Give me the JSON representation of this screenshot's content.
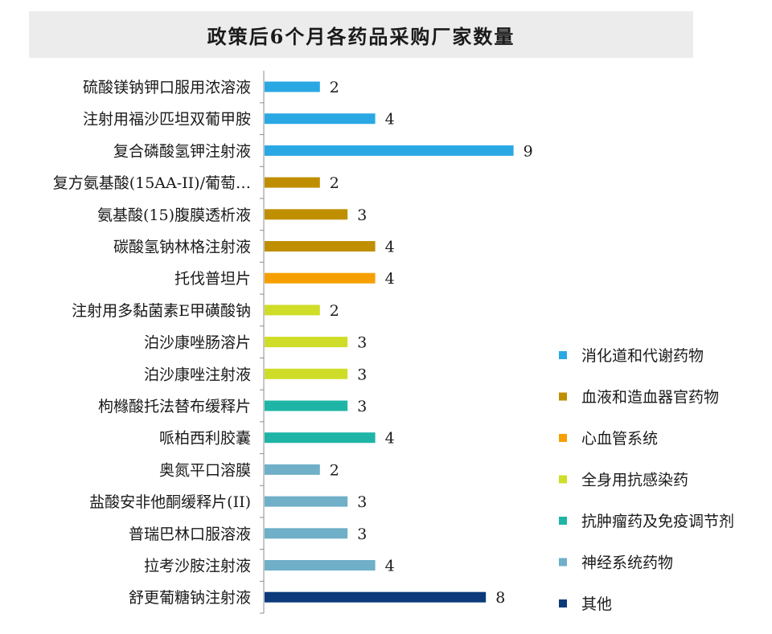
{
  "chart_data": {
    "type": "bar",
    "orientation": "horizontal",
    "title": "政策后6个月各药品采购厂家数量",
    "categories": [
      "硫酸镁钠钾口服用浓溶液",
      "注射用福沙匹坦双葡甲胺",
      "复合磷酸氢钾注射液",
      "复方氨基酸(15AA-II)/葡萄…",
      "氨基酸(15)腹膜透析液",
      "碳酸氢钠林格注射液",
      "托伐普坦片",
      "注射用多黏菌素E甲磺酸钠",
      "泊沙康唑肠溶片",
      "泊沙康唑注射液",
      "枸橼酸托法替布缓释片",
      "哌柏西利胶囊",
      "奥氮平口溶膜",
      "盐酸安非他酮缓释片(II)",
      "普瑞巴林口服溶液",
      "拉考沙胺注射液",
      "舒更葡糖钠注射液"
    ],
    "values": [
      2,
      4,
      9,
      2,
      3,
      4,
      4,
      2,
      3,
      3,
      3,
      4,
      2,
      3,
      3,
      4,
      8
    ],
    "groups": [
      0,
      0,
      0,
      1,
      1,
      1,
      2,
      3,
      3,
      3,
      4,
      4,
      5,
      5,
      5,
      5,
      6
    ],
    "legend": {
      "placement": "right",
      "entries": [
        {
          "name": "消化道和代谢药物",
          "color": "#2aa8e4"
        },
        {
          "name": "血液和造血器官药物",
          "color": "#bf8f00"
        },
        {
          "name": "心血管系统",
          "color": "#f5a000"
        },
        {
          "name": "全身用抗感染药",
          "color": "#cfdd28"
        },
        {
          "name": "抗肿瘤药及免疫调节剂",
          "color": "#1eb5a6"
        },
        {
          "name": "神经系统药物",
          "color": "#6fafc8"
        },
        {
          "name": "其他",
          "color": "#0c3a7a"
        }
      ]
    },
    "xlim": [
      0,
      9
    ],
    "grid": false,
    "data_labels": true
  }
}
